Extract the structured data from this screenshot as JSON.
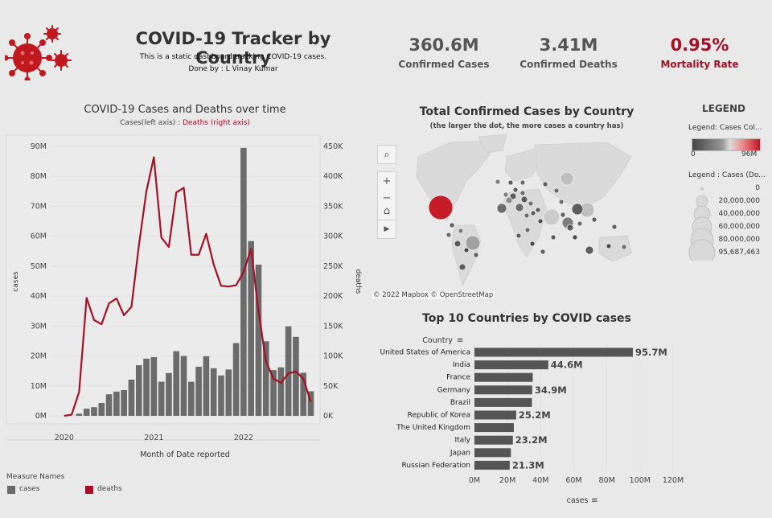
{
  "header": {
    "title": "COVID-19 Tracker by Country",
    "subtitle": "This is a static dashboard tracking COVID-19 cases.",
    "author": "Done by : L Vinay Kumar"
  },
  "kpis": [
    {
      "value": "360.6M",
      "label": "Confirmed Cases"
    },
    {
      "value": "3.41M",
      "label": "Confirmed Deaths"
    },
    {
      "value": "0.95%",
      "label": "Mortality Rate"
    }
  ],
  "colors": {
    "accent_red": "#a41024",
    "bar_gray": "#6b6b6b",
    "background": "#e9e9e9"
  },
  "time_chart": {
    "title": "COVID-19 Cases and Deaths over time",
    "subtitle_cases": "Cases(left axis) :",
    "subtitle_deaths": "Deaths (right axis)",
    "y_left_label": "cases",
    "y_right_label": "deaths",
    "x_label": "Month of Date reported",
    "left_ticks": [
      "0M",
      "10M",
      "20M",
      "30M",
      "40M",
      "50M",
      "60M",
      "70M",
      "80M",
      "90M"
    ],
    "right_ticks": [
      "0K",
      "50K",
      "100K",
      "150K",
      "200K",
      "250K",
      "300K",
      "350K",
      "400K",
      "450K"
    ],
    "x_ticks": [
      "2020",
      "2021",
      "2022"
    ],
    "legend_title": "Measure Names",
    "legend_cases": "cases",
    "legend_deaths": "deaths"
  },
  "map": {
    "title": "Total Confirmed Cases by Country",
    "subtitle": "(the larger the dot, the more cases a country has)",
    "attribution": "© 2022 Mapbox  © OpenStreetMap",
    "controls": [
      "search-icon",
      "zoom-in-icon",
      "zoom-out-icon",
      "home-icon",
      "play-icon"
    ]
  },
  "legend": {
    "title": "LEGEND",
    "color_title": "Legend: Cases Col...",
    "color_min": "0",
    "color_max": "96M",
    "size_title": "Legend : Cases (Do...",
    "size_items": [
      "0",
      "20,000,000",
      "40,000,000",
      "60,000,000",
      "80,000,000",
      "95,687,463"
    ]
  },
  "chart_data": [
    {
      "type": "bar",
      "title": "COVID-19 Cases and Deaths over time",
      "xlabel": "Month of Date reported",
      "ylabel": "cases",
      "ylim": [
        0,
        92000000
      ],
      "y2label": "deaths",
      "y2lim": [
        0,
        450000
      ],
      "x": [
        "2020-01",
        "2020-02",
        "2020-03",
        "2020-04",
        "2020-05",
        "2020-06",
        "2020-07",
        "2020-08",
        "2020-09",
        "2020-10",
        "2020-11",
        "2020-12",
        "2021-01",
        "2021-02",
        "2021-03",
        "2021-04",
        "2021-05",
        "2021-06",
        "2021-07",
        "2021-08",
        "2021-09",
        "2021-10",
        "2021-11",
        "2021-12",
        "2022-01",
        "2022-02",
        "2022-03",
        "2022-04",
        "2022-05",
        "2022-06",
        "2022-07",
        "2022-08",
        "2022-09",
        "2022-10"
      ],
      "series": [
        {
          "name": "cases",
          "type": "bar",
          "values": [
            0,
            0,
            0.7,
            2.4,
            2.9,
            4.3,
            7.2,
            8.1,
            8.6,
            12.1,
            16.9,
            19.1,
            19.6,
            11.4,
            14.3,
            21.6,
            20.0,
            11.4,
            16.4,
            19.9,
            15.9,
            13.5,
            15.5,
            24.3,
            89.5,
            58.4,
            50.5,
            24.9,
            15.3,
            16.2,
            29.9,
            26.4,
            14.4,
            8.2
          ]
        },
        {
          "name": "deaths",
          "type": "line",
          "values": [
            0,
            2,
            40,
            197,
            160,
            153,
            188,
            196,
            168,
            182,
            285,
            375,
            432,
            298,
            282,
            373,
            381,
            269,
            269,
            304,
            253,
            217,
            216,
            218,
            240,
            279,
            175,
            91,
            62,
            55,
            71,
            74,
            62,
            23
          ]
        }
      ]
    },
    {
      "type": "bar",
      "title": "Top 10 Countries by COVID cases",
      "ylabel": "Country",
      "xlabel": "cases",
      "categories": [
        "United States of America",
        "India",
        "France",
        "Germany",
        "Brazil",
        "Republic of Korea",
        "The United Kingdom",
        "Italy",
        "Japan",
        "Russian Federation"
      ],
      "values": [
        95.7,
        44.6,
        35.2,
        34.9,
        34.7,
        25.2,
        23.8,
        23.2,
        22.0,
        21.3
      ],
      "value_labels": [
        "95.7M",
        "44.6M",
        "",
        "34.9M",
        "",
        "25.2M",
        "",
        "23.2M",
        "",
        "21.3M"
      ],
      "x_ticks": [
        "0M",
        "20M",
        "40M",
        "60M",
        "80M",
        "100M",
        "120M"
      ],
      "xlim": [
        0,
        120
      ]
    }
  ]
}
